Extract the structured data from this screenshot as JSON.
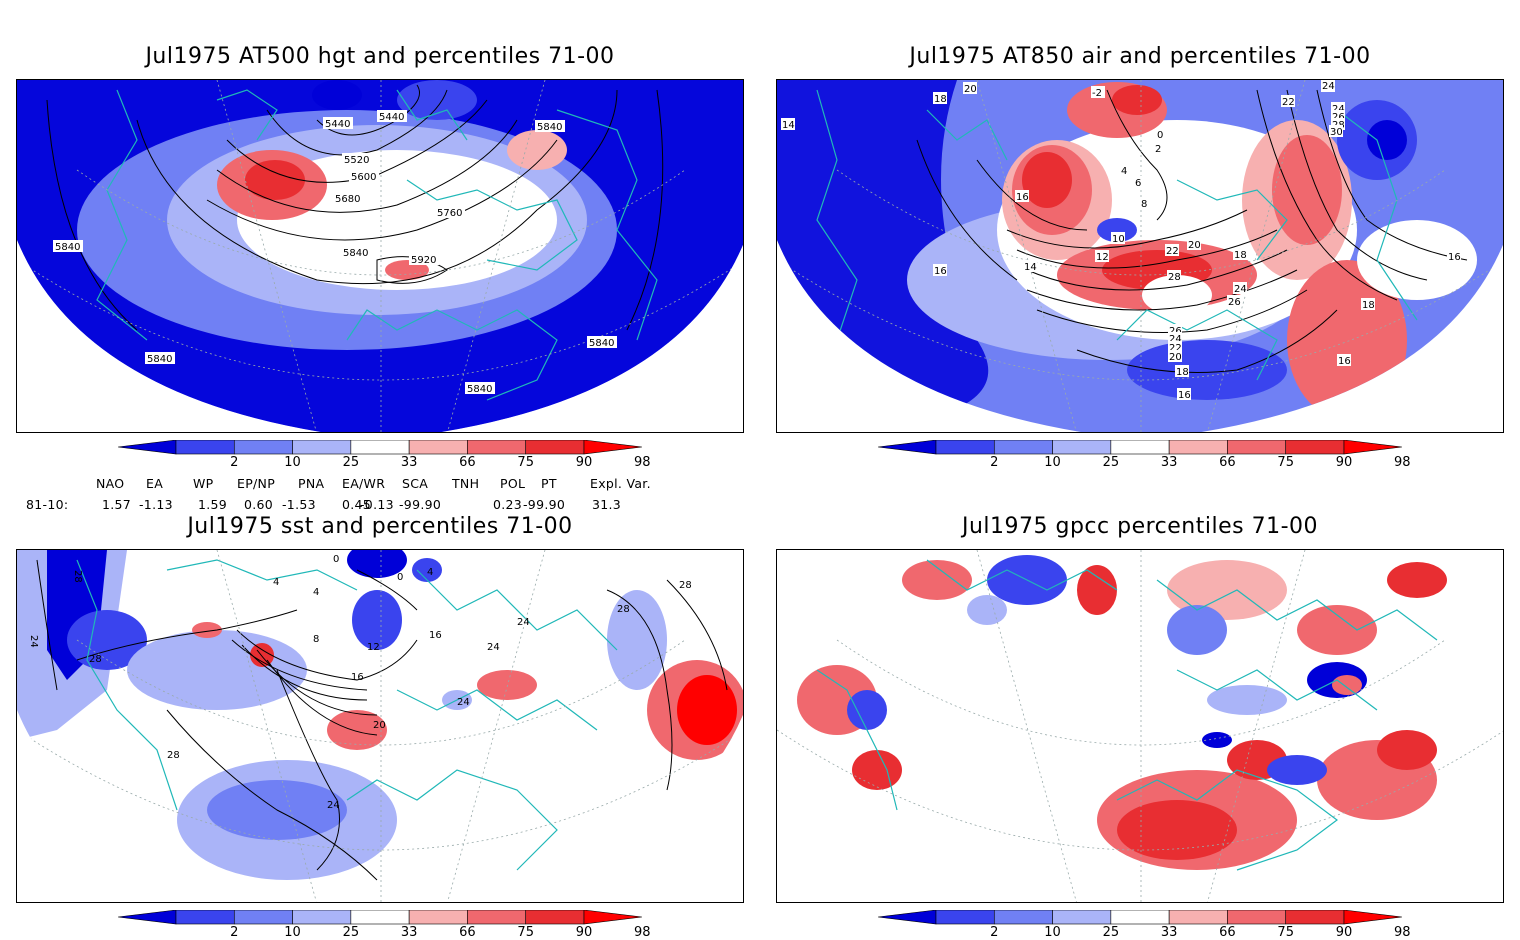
{
  "panels": [
    {
      "id": "p1",
      "title": "Jul1975 AT500 hgt and percentiles 71-00",
      "contour_labels": [
        "5440",
        "5440",
        "5520",
        "5600",
        "5680",
        "5760",
        "5840",
        "5920",
        "5840",
        "5840",
        "5840",
        "5840",
        "5840"
      ]
    },
    {
      "id": "p2",
      "title": "Jul1975 AT850 air and percentiles 71-00",
      "contour_labels": [
        "14",
        "18",
        "20",
        "-2",
        "24",
        "24",
        "22",
        "26",
        "28",
        "30",
        "0",
        "2",
        "4",
        "6",
        "8",
        "16",
        "10",
        "12",
        "14",
        "22",
        "20",
        "18",
        "16",
        "28",
        "24",
        "26",
        "16",
        "18",
        "26",
        "24",
        "22",
        "20",
        "18",
        "16",
        "16",
        "18"
      ]
    },
    {
      "id": "p3",
      "title": "Jul1975 sst and percentiles 71-00",
      "contour_labels": [
        "28",
        "24",
        "28",
        "0",
        "4",
        "4",
        "0",
        "4",
        "8",
        "12",
        "16",
        "16",
        "20",
        "24",
        "24",
        "24",
        "28",
        "28",
        "28",
        "24"
      ]
    },
    {
      "id": "p4",
      "title": "Jul1975 gpcc percentiles 71-00",
      "contour_labels": []
    }
  ],
  "colorbar": {
    "ticks": [
      "2",
      "10",
      "25",
      "33",
      "66",
      "75",
      "90",
      "98"
    ],
    "colors": [
      "#0000d8",
      "#3a44ee",
      "#7080f4",
      "#aab4f8",
      "#ffffff",
      "#f7b0b0",
      "#f0686e",
      "#e82e32",
      "#ff0000"
    ]
  },
  "indices": {
    "headers": [
      "NAO",
      "EA",
      "WP",
      "EP/NP",
      "PNA",
      "EA/WR",
      "SCA",
      "TNH",
      "POL",
      "PT",
      "Expl. Var."
    ],
    "row_label": "81-10:",
    "values": [
      "1.57",
      "-1.13",
      "1.59",
      "0.60",
      "-1.53",
      "0.45",
      "-0.13",
      "-99.90",
      "0.23",
      "-99.90",
      "31.3"
    ]
  }
}
